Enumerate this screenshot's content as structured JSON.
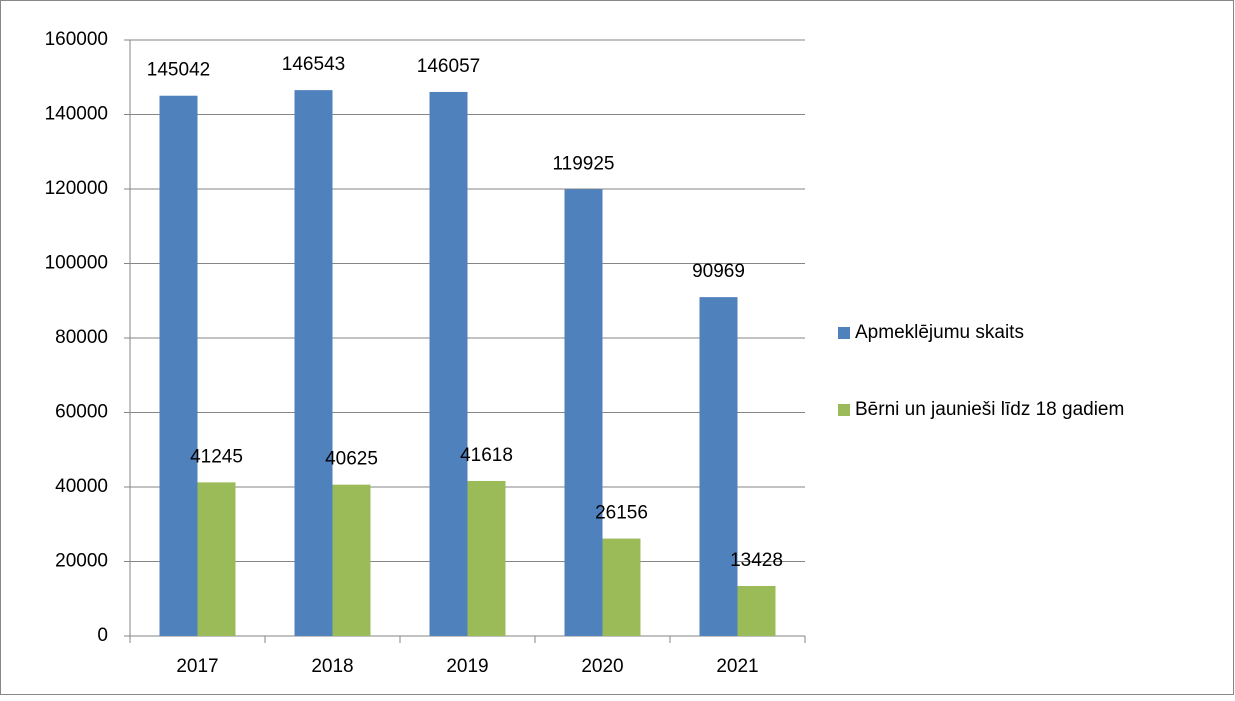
{
  "chart_data": {
    "type": "bar",
    "categories": [
      "2017",
      "2018",
      "2019",
      "2020",
      "2021"
    ],
    "series": [
      {
        "name": "Apmeklējumu skaits",
        "color": "#4f81bd",
        "values": [
          145042,
          146543,
          146057,
          119925,
          90969
        ]
      },
      {
        "name": "Bērni un jaunieši līdz 18 gadiem",
        "color": "#9bbb59",
        "values": [
          41245,
          40625,
          41618,
          26156,
          13428
        ]
      }
    ],
    "ylim": [
      0,
      160000
    ],
    "yticks": [
      0,
      20000,
      40000,
      60000,
      80000,
      100000,
      120000,
      140000,
      160000
    ],
    "grid": true,
    "legend": "right"
  }
}
